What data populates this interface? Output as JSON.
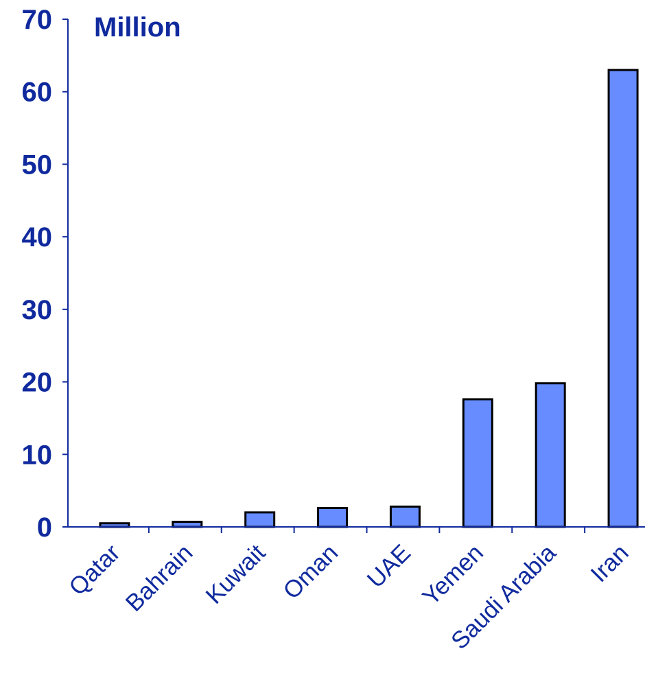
{
  "chart_data": {
    "type": "bar",
    "title": "",
    "ylabel": "Million",
    "xlabel": "",
    "categories": [
      "Qatar",
      "Bahrain",
      "Kuwait",
      "Oman",
      "UAE",
      "Yemen",
      "Saudi Arabia",
      "Iran"
    ],
    "values": [
      0.5,
      0.7,
      2.0,
      2.6,
      2.8,
      17.6,
      19.8,
      63.0
    ],
    "ylim": [
      0,
      70
    ],
    "yticks": [
      0,
      10,
      20,
      30,
      40,
      50,
      60,
      70
    ],
    "ytick_labels": [
      "0",
      "10",
      "20",
      "30",
      "40",
      "50",
      "60",
      "70"
    ],
    "bar_color": "#668cff",
    "bar_edge_color": "#000000",
    "text_color": "#102a9e",
    "grid": false,
    "legend": "none"
  }
}
